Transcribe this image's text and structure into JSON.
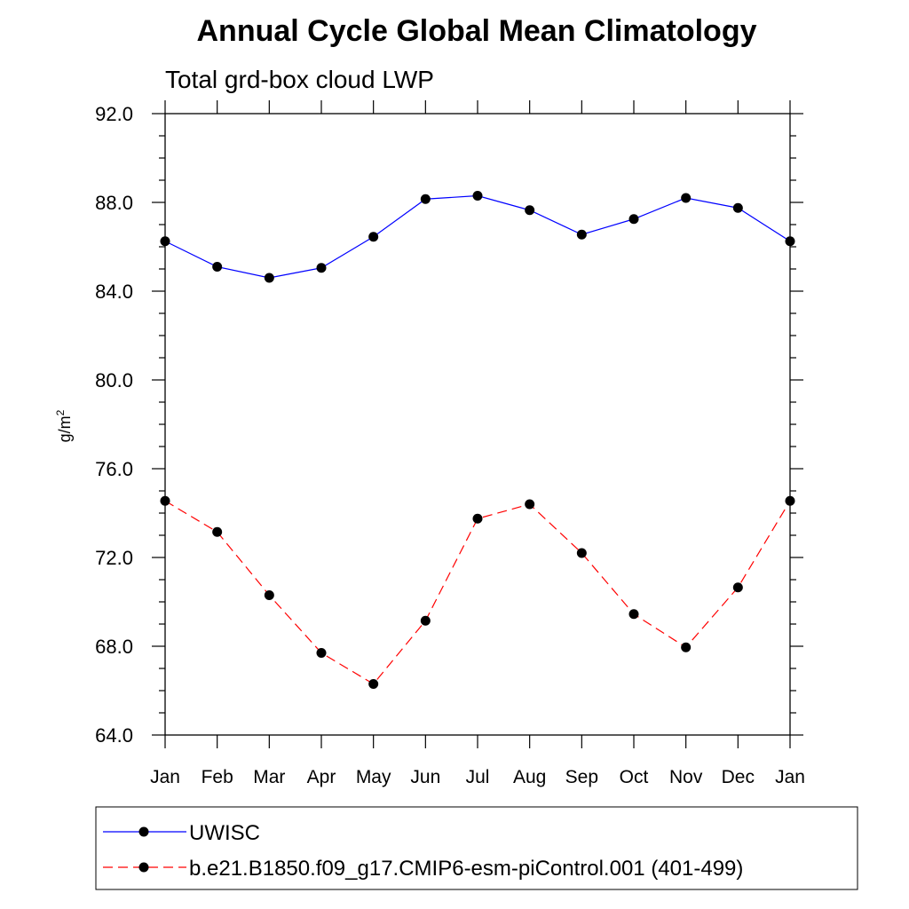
{
  "chart_data": {
    "type": "line",
    "title": "Annual Cycle Global Mean Climatology",
    "subtitle": "Total grd-box cloud LWP",
    "ylabel": "g/m",
    "ylabel_superscript": "2",
    "xlabel": "",
    "ylim": [
      64,
      92
    ],
    "yticks": [
      64,
      68,
      72,
      76,
      80,
      84,
      88,
      92
    ],
    "ytick_labels": [
      "64.0",
      "68.0",
      "72.0",
      "76.0",
      "80.0",
      "84.0",
      "88.0",
      "92.0"
    ],
    "categories": [
      "Jan",
      "Feb",
      "Mar",
      "Apr",
      "May",
      "Jun",
      "Jul",
      "Aug",
      "Sep",
      "Oct",
      "Nov",
      "Dec",
      "Jan"
    ],
    "grid": false,
    "legend_position": "bottom",
    "series": [
      {
        "name": "UWISC",
        "color": "#0000ff",
        "dash": "solid",
        "values": [
          86.25,
          85.1,
          84.6,
          85.05,
          86.45,
          88.15,
          88.3,
          87.65,
          86.55,
          87.25,
          88.2,
          87.75,
          86.25
        ]
      },
      {
        "name": "b.e21.B1850.f09_g17.CMIP6-esm-piControl.001 (401-499)",
        "color": "#ff0000",
        "dash": "dashed",
        "values": [
          74.55,
          73.15,
          70.3,
          67.7,
          66.3,
          69.15,
          73.75,
          74.4,
          72.2,
          69.45,
          67.95,
          70.65,
          74.55
        ]
      }
    ]
  }
}
